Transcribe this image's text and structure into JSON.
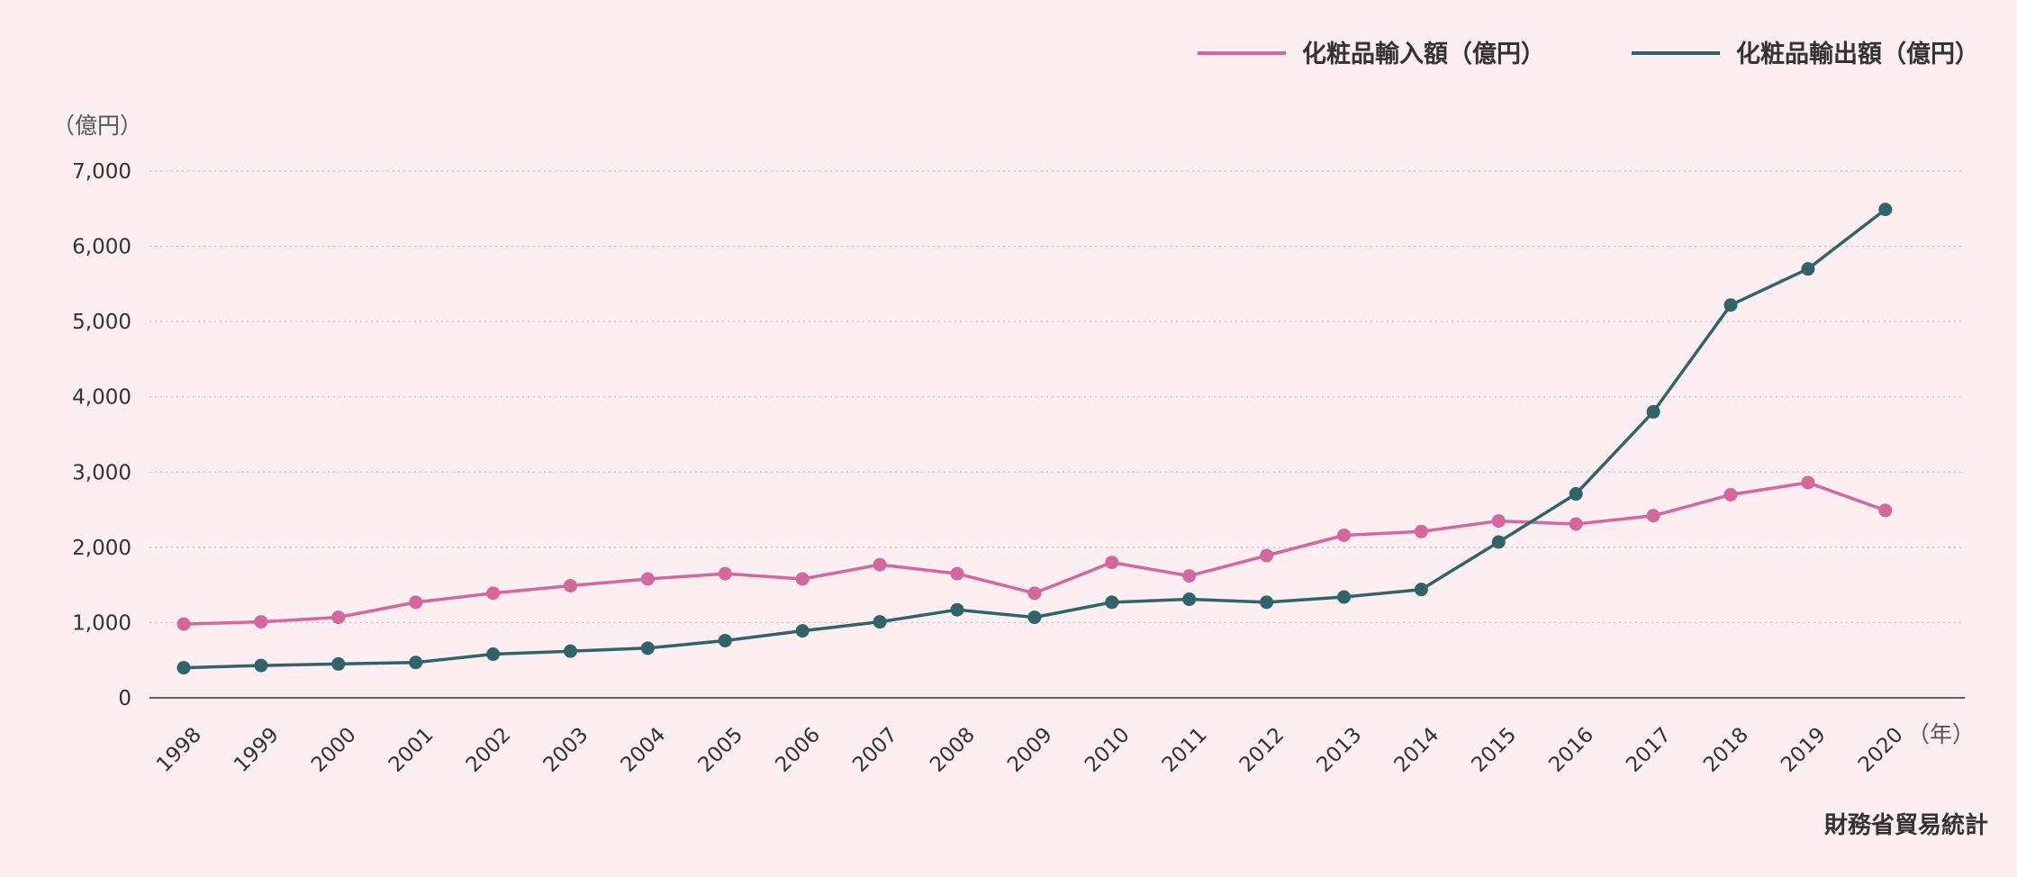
{
  "chart_data": {
    "type": "line",
    "x": [
      "1998",
      "1999",
      "2000",
      "2001",
      "2002",
      "2003",
      "2004",
      "2005",
      "2006",
      "2007",
      "2008",
      "2009",
      "2010",
      "2011",
      "2012",
      "2013",
      "2014",
      "2015",
      "2016",
      "2017",
      "2018",
      "2019",
      "2020"
    ],
    "series": [
      {
        "name": "化粧品輸入額（億円）",
        "color": "#d4679b",
        "values": [
          980,
          1010,
          1070,
          1270,
          1390,
          1490,
          1580,
          1650,
          1580,
          1770,
          1650,
          1390,
          1800,
          1620,
          1890,
          2160,
          2210,
          2350,
          2310,
          2420,
          2700,
          2860,
          2490
        ]
      },
      {
        "name": "化粧品輸出額（億円）",
        "color": "#2f6468",
        "values": [
          400,
          430,
          450,
          470,
          580,
          620,
          660,
          760,
          890,
          1010,
          1170,
          1070,
          1270,
          1310,
          1270,
          1340,
          1440,
          2070,
          2710,
          3800,
          5220,
          5700,
          6490
        ]
      }
    ],
    "yticks": [
      "0",
      "1,000",
      "2,000",
      "3,000",
      "4,000",
      "5,000",
      "6,000",
      "7,000"
    ],
    "ylim": [
      0,
      7000
    ],
    "y_unit": "（億円）",
    "x_unit": "（年）",
    "grid": true,
    "legend_position": "top-right",
    "source": "財務省貿易統計"
  }
}
